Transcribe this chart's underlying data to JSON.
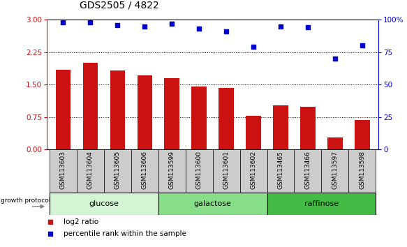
{
  "title": "GDS2505 / 4822",
  "categories": [
    "GSM113603",
    "GSM113604",
    "GSM113605",
    "GSM113606",
    "GSM113599",
    "GSM113600",
    "GSM113601",
    "GSM113602",
    "GSM113465",
    "GSM113466",
    "GSM113597",
    "GSM113598"
  ],
  "log2_ratio": [
    1.85,
    2.0,
    1.83,
    1.72,
    1.65,
    1.45,
    1.42,
    0.78,
    1.02,
    0.98,
    0.28,
    0.68
  ],
  "percentile_rank": [
    98,
    98,
    96,
    95,
    97,
    93,
    91,
    79,
    95,
    94,
    70,
    80
  ],
  "bar_color": "#cc1111",
  "dot_color": "#0000cc",
  "ylim_left": [
    0,
    3
  ],
  "ylim_right": [
    0,
    100
  ],
  "yticks_left": [
    0,
    0.75,
    1.5,
    2.25,
    3
  ],
  "yticks_right": [
    0,
    25,
    50,
    75,
    100
  ],
  "ytick_labels_right": [
    "0",
    "25",
    "50",
    "75",
    "100%"
  ],
  "groups": [
    {
      "label": "glucose",
      "start": 0,
      "end": 4,
      "color": "#d4f5d4"
    },
    {
      "label": "galactose",
      "start": 4,
      "end": 8,
      "color": "#88dd88"
    },
    {
      "label": "raffinose",
      "start": 8,
      "end": 12,
      "color": "#44bb44"
    }
  ],
  "growth_protocol_label": "growth protocol",
  "legend_bar_label": "log2 ratio",
  "legend_dot_label": "percentile rank within the sample",
  "title_fontsize": 10,
  "tick_fontsize": 7.5,
  "bar_width": 0.55,
  "xticklabel_bg": "#cccccc"
}
